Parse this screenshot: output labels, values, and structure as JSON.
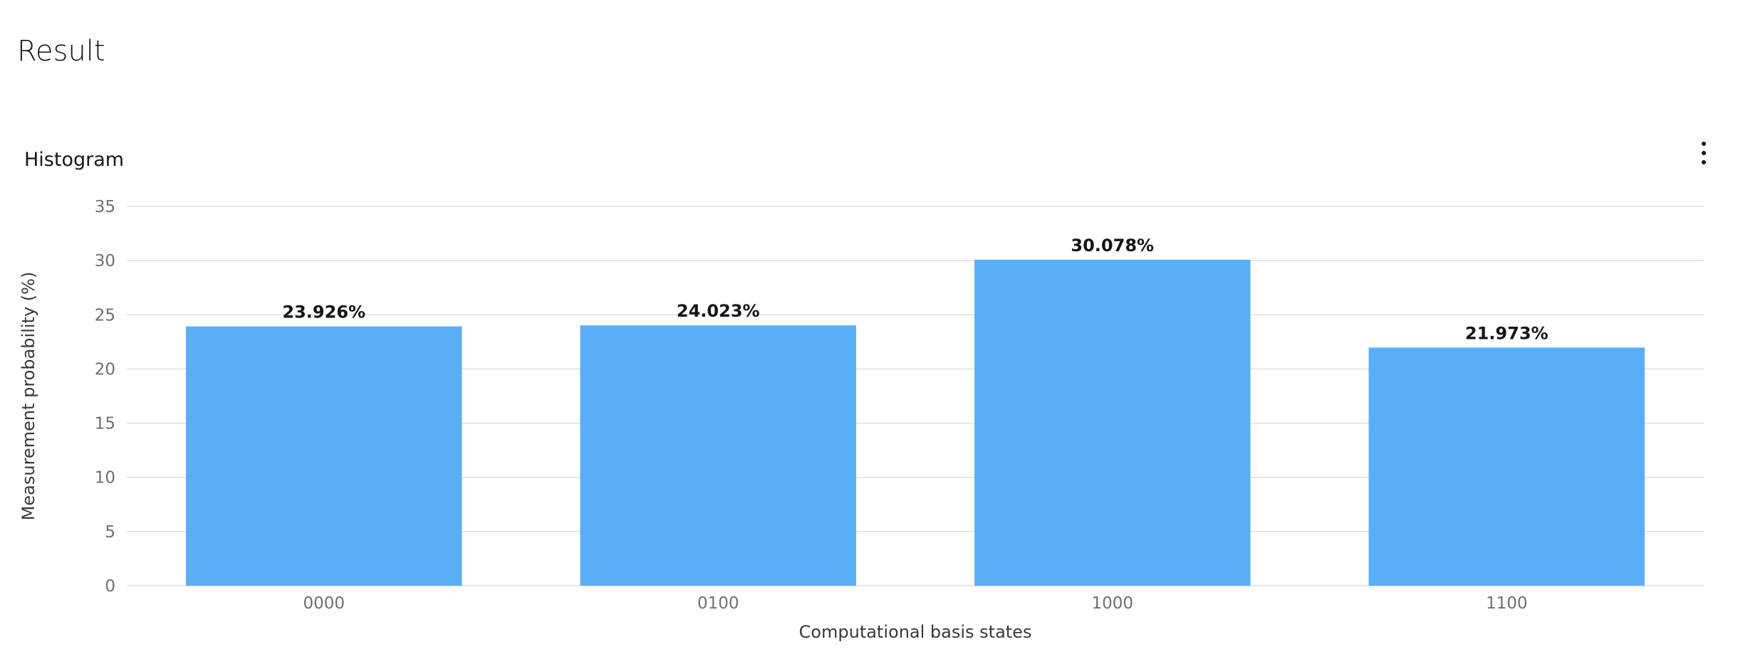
{
  "page": {
    "title": "Result"
  },
  "chart_card": {
    "title": "Histogram",
    "overflow_icon": "overflow-menu-vertical-icon"
  },
  "chart_data": {
    "type": "bar",
    "title": "Histogram",
    "categories": [
      "0000",
      "0100",
      "1000",
      "1100"
    ],
    "values": [
      23.926,
      24.023,
      30.078,
      21.973
    ],
    "data_labels": [
      "23.926%",
      "24.023%",
      "30.078%",
      "21.973%"
    ],
    "xlabel": "Computational basis states",
    "ylabel": "Measurement probability (%)",
    "ylim": [
      0,
      35
    ],
    "yticks": [
      0,
      5,
      10,
      15,
      20,
      25,
      30,
      35
    ],
    "grid": true,
    "legend": "none",
    "bar_color": "#5aaef7",
    "grid_color": "#e0e0e0"
  }
}
